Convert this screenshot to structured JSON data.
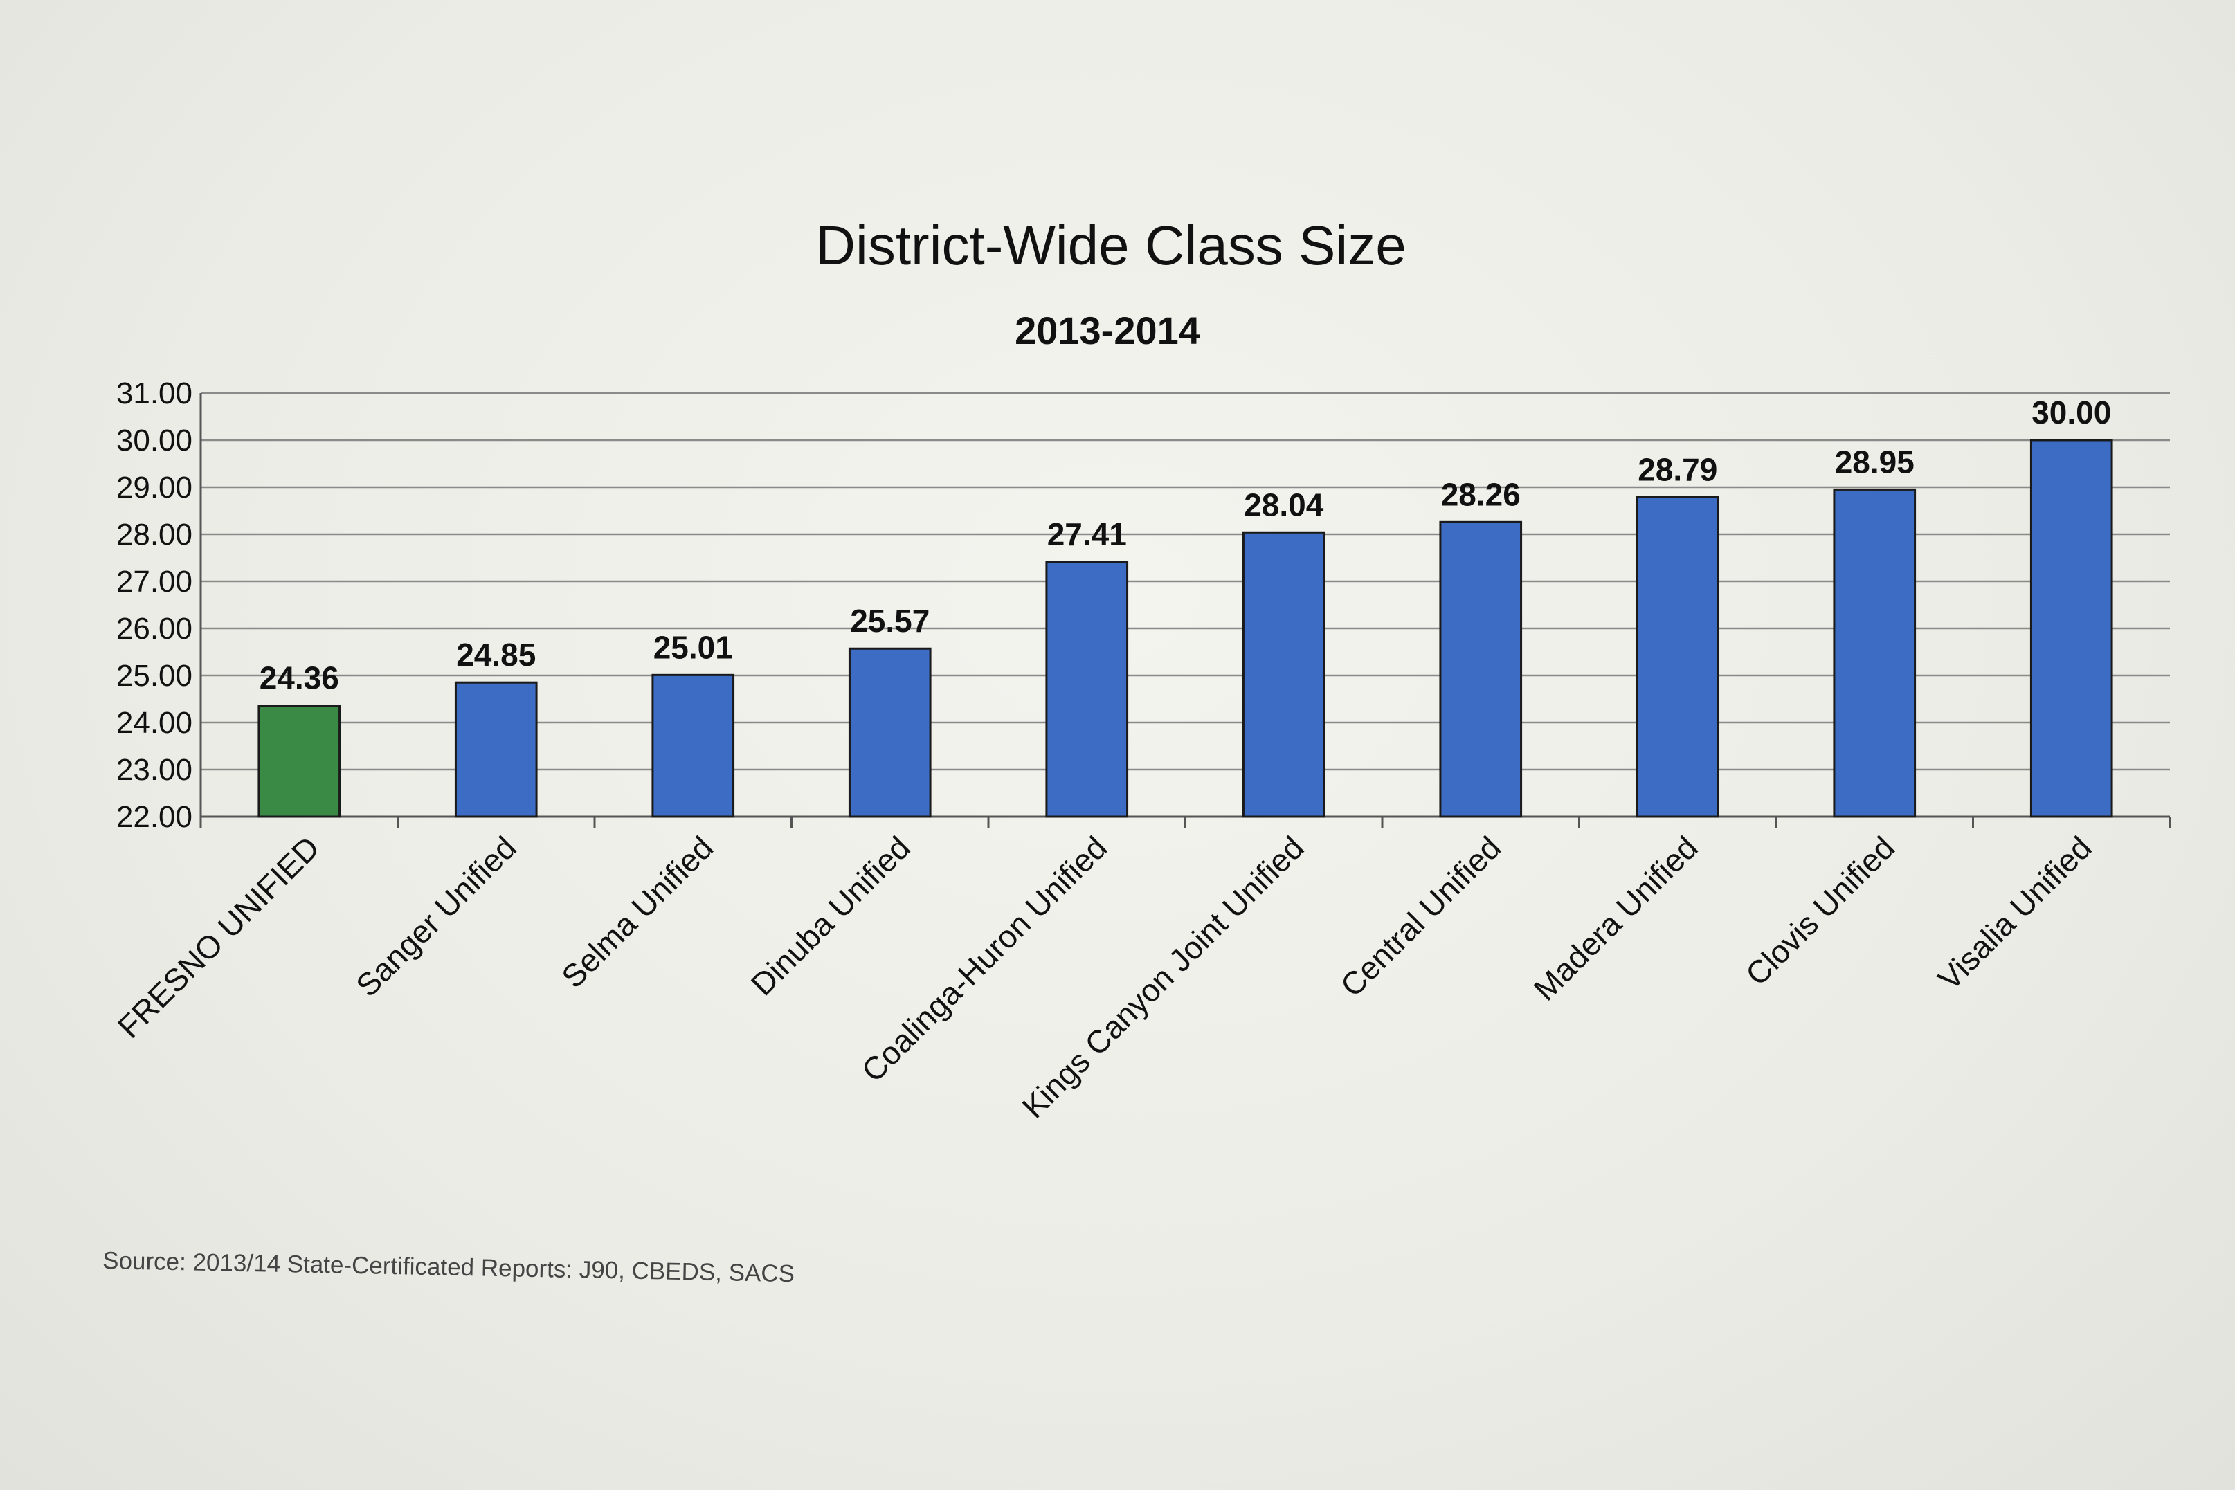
{
  "chart_data": {
    "type": "bar",
    "title": "District-Wide Class Size",
    "subtitle": "2013-2014",
    "xlabel": "",
    "ylabel": "",
    "ylim": [
      22,
      31
    ],
    "yticks": [
      "22.00",
      "23.00",
      "24.00",
      "25.00",
      "26.00",
      "27.00",
      "28.00",
      "29.00",
      "30.00",
      "31.00"
    ],
    "grid": true,
    "legend": "none",
    "categories": [
      "FRESNO UNIFIED",
      "Sanger Unified",
      "Selma Unified",
      "Dinuba Unified",
      "Coalinga-Huron Unified",
      "Kings Canyon Joint Unified",
      "Central Unified",
      "Madera Unified",
      "Clovis Unified",
      "Visalia Unified"
    ],
    "values": [
      24.36,
      24.85,
      25.01,
      25.57,
      27.41,
      28.04,
      28.26,
      28.79,
      28.95,
      30.0
    ],
    "value_labels": [
      "24.36",
      "24.85",
      "25.01",
      "25.57",
      "27.41",
      "28.04",
      "28.26",
      "28.79",
      "28.95",
      "30.00"
    ],
    "colors": {
      "highlight": "#3a8a46",
      "default": "#3d6cc4",
      "gridline": "#8a8a8a"
    },
    "highlight_index": 0,
    "source": "Source: 2013/14 State-Certificated Reports: J90, CBEDS, SACS"
  }
}
